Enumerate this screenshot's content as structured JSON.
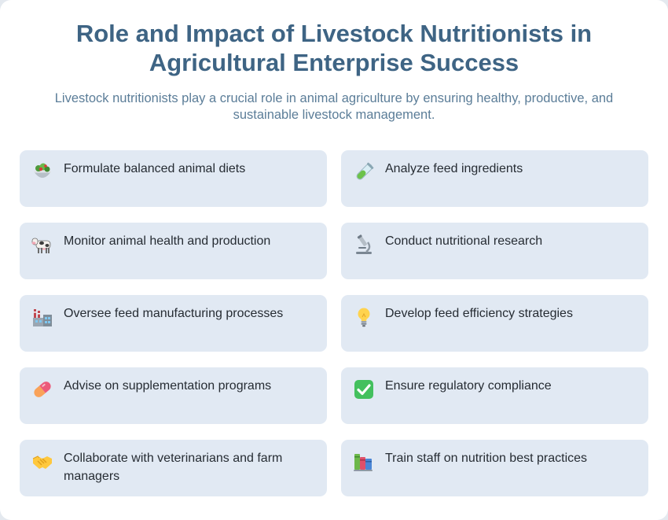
{
  "header": {
    "title": "Role and Impact of Livestock Nutritionists in Agricultural Enterprise Success",
    "subtitle": "Livestock nutritionists play a crucial role in animal agriculture by ensuring healthy, productive, and sustainable livestock management."
  },
  "roles": [
    {
      "icon": "salad-bowl-icon",
      "label": "Formulate balanced animal diets"
    },
    {
      "icon": "test-tube-icon",
      "label": "Analyze feed ingredients"
    },
    {
      "icon": "cow-icon",
      "label": "Monitor animal health and production"
    },
    {
      "icon": "microscope-icon",
      "label": "Conduct nutritional research"
    },
    {
      "icon": "factory-icon",
      "label": "Oversee feed manufacturing processes"
    },
    {
      "icon": "light-bulb-icon",
      "label": "Develop feed efficiency strategies"
    },
    {
      "icon": "pill-icon",
      "label": "Advise on supplementation programs"
    },
    {
      "icon": "check-mark-icon",
      "label": "Ensure regulatory compliance"
    },
    {
      "icon": "handshake-icon",
      "label": "Collaborate with veterinarians and farm managers"
    },
    {
      "icon": "books-icon",
      "label": "Train staff on nutrition best practices"
    }
  ],
  "colors": {
    "title": "#3e6484",
    "subtitle": "#5b7d98",
    "item_background": "#e1e9f3",
    "item_text": "#262c33"
  }
}
